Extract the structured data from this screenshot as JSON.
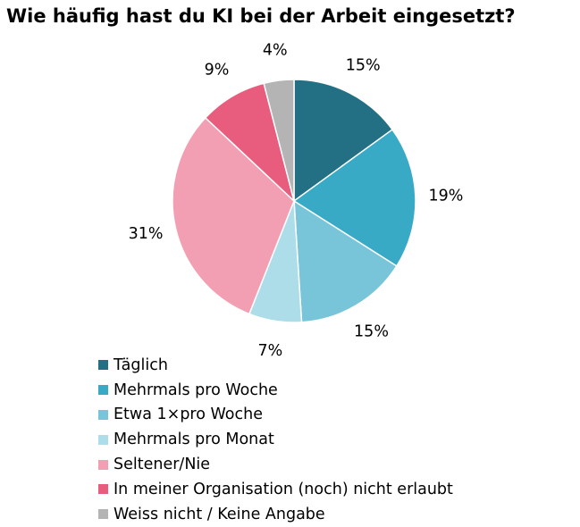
{
  "chart_data": {
    "type": "pie",
    "title": "Wie häufig hast du KI bei der Arbeit eingesetzt?",
    "start_angle_deg": 0,
    "direction": "clockwise",
    "legend_position": "bottom-left",
    "slices": [
      {
        "label": "Täglich",
        "value": 15,
        "display": "15%",
        "color": "#236f84"
      },
      {
        "label": "Mehrmals pro Woche",
        "value": 19,
        "display": "19%",
        "color": "#38aac6"
      },
      {
        "label": "Etwa 1×pro Woche",
        "value": 15,
        "display": "15%",
        "color": "#78c5d9"
      },
      {
        "label": "Mehrmals pro Monat",
        "value": 7,
        "display": "7%",
        "color": "#acdde9"
      },
      {
        "label": "Seltener/Nie",
        "value": 31,
        "display": "31%",
        "color": "#f39fb3"
      },
      {
        "label": "In meiner Organisation (noch) nicht erlaubt",
        "value": 9,
        "display": "9%",
        "color": "#e85c7d"
      },
      {
        "label": "Weiss nicht / Keine Angabe",
        "value": 4,
        "display": "4%",
        "color": "#b4b4b4"
      }
    ]
  }
}
